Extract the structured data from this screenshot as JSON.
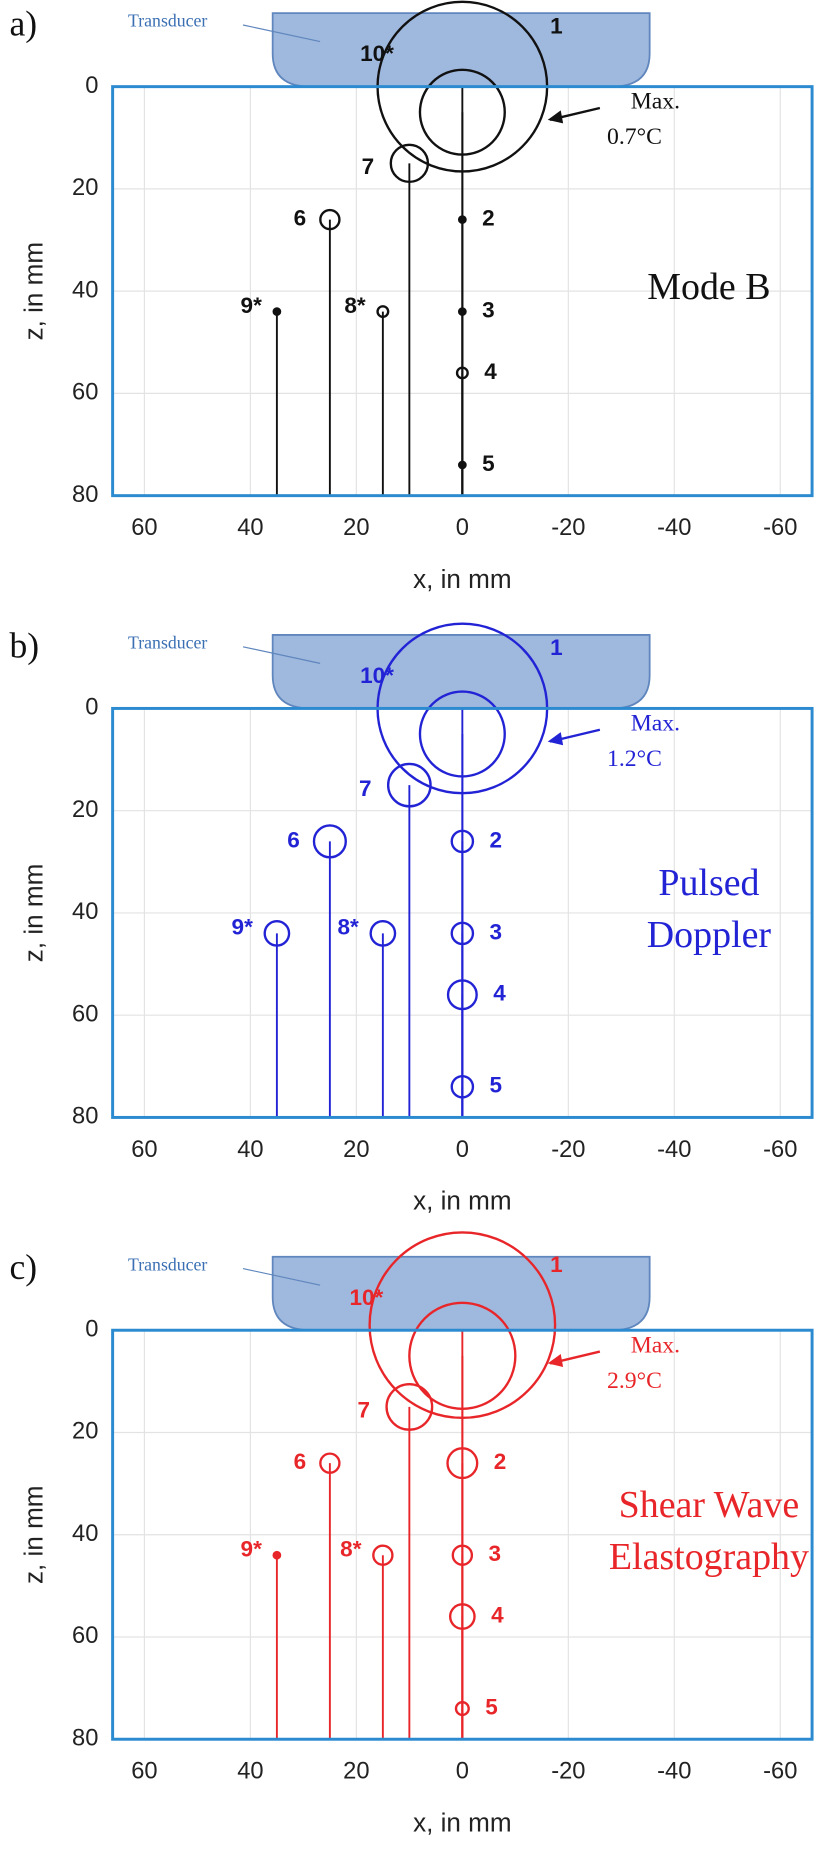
{
  "chart_data": [
    {
      "type": "scatter",
      "panel_label": "a)",
      "title": [
        "Mode B"
      ],
      "color": "#111111",
      "transducer_label": "Transducer",
      "annotation": [
        "Max.",
        "0.7°C"
      ],
      "xlabel": "x, in mm",
      "ylabel": "z, in mm",
      "xlim": [
        66,
        -66
      ],
      "ylim": [
        0,
        80
      ],
      "y_inverted": true,
      "xticks": [
        60,
        40,
        20,
        0,
        -20,
        -40,
        -60
      ],
      "yticks": [
        0,
        20,
        40,
        60,
        80
      ],
      "grid": true,
      "labels": [
        "1",
        "2",
        "3",
        "4",
        "5",
        "6",
        "7",
        "8*",
        "9*",
        "10*"
      ],
      "x": [
        0,
        0,
        0,
        0,
        0,
        25,
        10,
        15,
        35,
        0
      ],
      "values": [
        0,
        26,
        44,
        56,
        74,
        26,
        15,
        44,
        44,
        5
      ],
      "sizes": [
        16,
        0.6,
        0.6,
        1,
        0.6,
        1.8,
        3.5,
        1,
        0.6,
        8
      ]
    },
    {
      "type": "scatter",
      "panel_label": "b)",
      "title": [
        "Pulsed",
        "Doppler"
      ],
      "color": "#2323d6",
      "transducer_label": "Transducer",
      "annotation": [
        "Max.",
        "1.2°C"
      ],
      "xlabel": "x, in mm",
      "ylabel": "z, in mm",
      "xlim": [
        66,
        -66
      ],
      "ylim": [
        0,
        80
      ],
      "y_inverted": true,
      "xticks": [
        60,
        40,
        20,
        0,
        -20,
        -40,
        -60
      ],
      "yticks": [
        0,
        20,
        40,
        60,
        80
      ],
      "grid": true,
      "labels": [
        "1",
        "2",
        "3",
        "4",
        "5",
        "6",
        "7",
        "8*",
        "9*",
        "10*"
      ],
      "x": [
        0,
        0,
        0,
        0,
        0,
        25,
        10,
        15,
        35,
        0
      ],
      "values": [
        0,
        26,
        44,
        56,
        74,
        26,
        15,
        44,
        44,
        5
      ],
      "sizes": [
        16,
        2,
        2,
        2.7,
        2,
        3,
        4,
        2.3,
        2.3,
        8
      ]
    },
    {
      "type": "scatter",
      "panel_label": "c)",
      "title": [
        "Shear Wave",
        "Elastography"
      ],
      "color": "#e8262a",
      "transducer_label": "Transducer",
      "annotation": [
        "Max.",
        "2.9°C"
      ],
      "xlabel": "x, in mm",
      "ylabel": "z, in mm",
      "xlim": [
        66,
        -66
      ],
      "ylim": [
        0,
        80
      ],
      "y_inverted": true,
      "xticks": [
        60,
        40,
        20,
        0,
        -20,
        -40,
        -60
      ],
      "yticks": [
        0,
        20,
        40,
        60,
        80
      ],
      "grid": true,
      "labels": [
        "1",
        "2",
        "3",
        "4",
        "5",
        "6",
        "7",
        "8*",
        "9*",
        "10*"
      ],
      "x": [
        0,
        0,
        0,
        0,
        0,
        25,
        10,
        15,
        35,
        0
      ],
      "values": [
        -1,
        26,
        44,
        56,
        74,
        26,
        15,
        44,
        44,
        5
      ],
      "sizes": [
        17.5,
        2.8,
        1.8,
        2.3,
        1.2,
        1.8,
        4.3,
        1.8,
        0.6,
        10
      ]
    }
  ]
}
